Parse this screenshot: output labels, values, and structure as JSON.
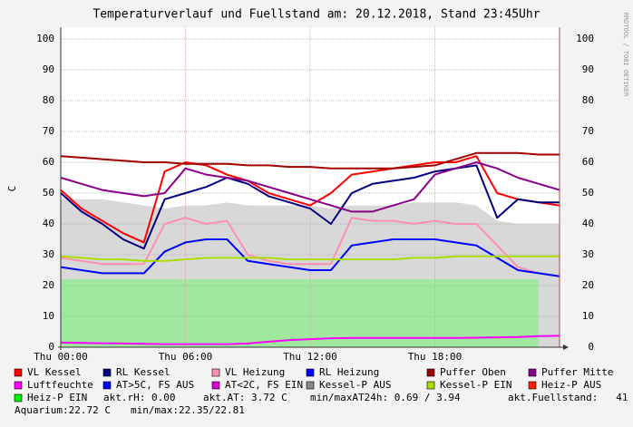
{
  "chart_data": {
    "type": "line",
    "title": "Temperaturverlauf und Fuellstand am: 20.12.2018, Stand 23:45Uhr",
    "y_label": "C",
    "side_label": "RRDTOOL / TOBI OETIKER",
    "xlim": [
      0,
      24
    ],
    "xticks": [
      {
        "value": 0,
        "label": "Thu 00:00"
      },
      {
        "value": 6,
        "label": "Thu 06:00"
      },
      {
        "value": 12,
        "label": "Thu 12:00"
      },
      {
        "value": 18,
        "label": "Thu 18:00"
      }
    ],
    "ylim": [
      0,
      100
    ],
    "yticks": [
      0,
      10,
      20,
      30,
      40,
      50,
      60,
      70,
      80,
      90,
      100
    ],
    "grid": true,
    "x": [
      0,
      1,
      2,
      3,
      4,
      5,
      6,
      7,
      8,
      9,
      10,
      11,
      12,
      13,
      14,
      15,
      16,
      17,
      18,
      19,
      20,
      21,
      22,
      23,
      24
    ],
    "series": [
      {
        "name": "VL Kessel",
        "color": "#ff0000",
        "values": [
          51,
          45,
          41,
          37,
          34,
          57,
          60,
          59,
          56,
          54,
          50,
          48,
          46,
          50,
          56,
          57,
          58,
          59,
          60,
          60,
          62,
          50,
          48,
          47,
          46
        ]
      },
      {
        "name": "RL Kessel",
        "color": "#000080",
        "values": [
          50,
          44,
          40,
          35,
          32,
          48,
          50,
          52,
          55,
          53,
          49,
          47,
          45,
          40,
          50,
          53,
          54,
          55,
          57,
          58,
          59,
          42,
          48,
          47,
          47
        ]
      },
      {
        "name": "VL Heizung",
        "color": "#ff8fb0",
        "values": [
          29,
          28,
          27,
          27,
          27,
          40,
          42,
          40,
          41,
          30,
          28,
          27,
          27,
          27,
          42,
          41,
          41,
          40,
          41,
          40,
          40,
          33,
          26,
          24,
          23
        ]
      },
      {
        "name": "RL Heizung",
        "color": "#0000ff",
        "values": [
          26,
          25,
          24,
          24,
          24,
          31,
          34,
          35,
          35,
          28,
          27,
          26,
          25,
          25,
          33,
          34,
          35,
          35,
          35,
          34,
          33,
          29,
          25,
          24,
          23
        ]
      },
      {
        "name": "Puffer Oben",
        "color": "#a00000",
        "values": [
          62,
          61.5,
          61,
          60.5,
          60,
          60,
          59.5,
          59.5,
          59.5,
          59,
          59,
          58.5,
          58.5,
          58,
          58,
          58,
          58,
          58.5,
          59,
          61,
          63,
          63,
          63,
          62.5,
          62.5
        ]
      },
      {
        "name": "Puffer Mitte",
        "color": "#8b008b",
        "values": [
          55,
          53,
          51,
          50,
          49,
          50,
          58,
          56,
          55,
          54,
          52,
          50,
          48,
          46,
          44,
          44,
          46,
          48,
          56,
          58,
          60,
          58,
          55,
          53,
          51
        ]
      },
      {
        "name": "Luftfeuchte",
        "color": "#ff00ff",
        "values": [
          1.5,
          1.4,
          1.3,
          1.2,
          1.1,
          1,
          1,
          1,
          1,
          1.2,
          1.8,
          2.3,
          2.6,
          2.9,
          3,
          3,
          3,
          3,
          3,
          3,
          3.1,
          3.2,
          3.3,
          3.6,
          3.7
        ]
      },
      {
        "name": "AT>5C, FS AUS",
        "color": "#0000ff",
        "values": [
          null,
          null,
          null,
          null,
          null,
          null,
          null,
          null,
          null,
          null,
          null,
          null,
          null,
          null,
          null,
          null,
          null,
          null,
          null,
          null,
          null,
          null,
          null,
          null,
          null
        ]
      },
      {
        "name": "AT<2C, FS EIN",
        "color": "#dd00dd",
        "values": [
          null,
          null,
          null,
          null,
          null,
          null,
          null,
          null,
          null,
          null,
          null,
          null,
          null,
          null,
          null,
          null,
          null,
          null,
          null,
          null,
          null,
          null,
          null,
          null,
          null
        ]
      },
      {
        "name": "Kessel-P AUS",
        "color": "#888888",
        "area": true,
        "fill": "#d8d8d8",
        "values": [
          48,
          48,
          48,
          47,
          46,
          45,
          46,
          46,
          47,
          46,
          46,
          46,
          46,
          45,
          46,
          46,
          46,
          47,
          47,
          47,
          46,
          41,
          40,
          40,
          40
        ]
      },
      {
        "name": "Kessel-P EIN",
        "color": "#aadd00",
        "values": [
          29.5,
          29,
          28.5,
          28.5,
          28,
          28,
          28.5,
          29,
          29,
          29,
          29,
          28.5,
          28.5,
          28.5,
          28.5,
          28.5,
          28.5,
          29,
          29,
          29.5,
          29.5,
          29.5,
          29.5,
          29.5,
          29.5
        ]
      },
      {
        "name": "Heiz-P AUS",
        "color": "#ff2200",
        "values": [
          null,
          null,
          null,
          null,
          null,
          null,
          null,
          null,
          null,
          null,
          null,
          null,
          null,
          null,
          null,
          null,
          null,
          null,
          null,
          null,
          null,
          null,
          null,
          null,
          null
        ]
      },
      {
        "name": "Heiz-P EIN",
        "color": "#00ee00",
        "area": true,
        "fill": "#a0e8a0",
        "values": [
          22,
          22,
          22,
          22,
          22,
          22,
          22,
          22,
          22,
          22,
          22,
          22,
          22,
          22,
          22,
          22,
          22,
          22,
          22,
          22,
          22,
          22,
          22,
          22,
          null
        ]
      }
    ],
    "footer_texts": [
      "akt.rH: 0.00",
      "akt.AT: 3.72 C",
      "min/maxAT24h: 0.69 / 3.94",
      "akt.Fuellstand:   41",
      "Aquarium:22.72 C",
      "min/max:22.35/22.81"
    ]
  }
}
